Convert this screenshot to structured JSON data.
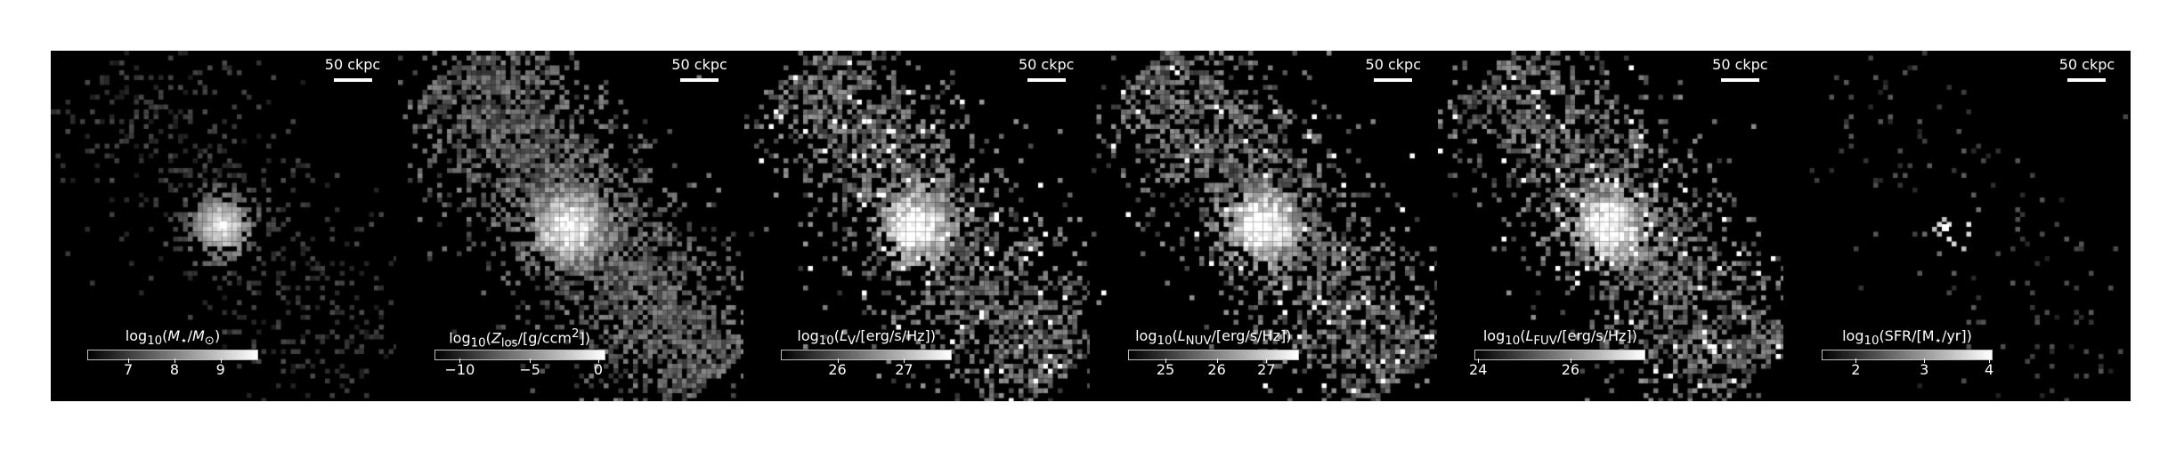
{
  "panels": [
    {
      "scale_label": "50 ckpc",
      "colorbar_label": "log<sub>10</sub>(<i>M</i><sub>⋆</sub>/<i>M</i><sub>⊙</sub>)",
      "ticks": [
        {
          "label": "7",
          "frac": 0.24
        },
        {
          "label": "8",
          "frac": 0.51
        },
        {
          "label": "9",
          "frac": 0.78
        }
      ],
      "style": "stellar"
    },
    {
      "scale_label": "50 ckpc",
      "colorbar_label": "log<sub>10</sub>(<i>Z</i><sub>los</sub>/[g/ccm<sup>2</sup>])",
      "ticks": [
        {
          "label": "−10",
          "frac": 0.15
        },
        {
          "label": "−5",
          "frac": 0.56
        },
        {
          "label": "0",
          "frac": 0.96
        }
      ],
      "style": "metal"
    },
    {
      "scale_label": "50 ckpc",
      "colorbar_label": "log<sub>10</sub>(<i>L</i><sub>V</sub>/[erg/s/Hz])",
      "ticks": [
        {
          "label": "26",
          "frac": 0.33
        },
        {
          "label": "27",
          "frac": 0.72
        }
      ],
      "style": "lum"
    },
    {
      "scale_label": "50 ckpc",
      "colorbar_label": "log<sub>10</sub>(<i>L</i><sub>NUV</sub>/[erg/s/Hz])",
      "ticks": [
        {
          "label": "25",
          "frac": 0.22
        },
        {
          "label": "26",
          "frac": 0.52
        },
        {
          "label": "27",
          "frac": 0.81
        }
      ],
      "style": "lum"
    },
    {
      "scale_label": "50 ckpc",
      "colorbar_label": "log<sub>10</sub>(<i>L</i><sub>FUV</sub>/[erg/s/Hz])",
      "ticks": [
        {
          "label": "24",
          "frac": 0.02
        },
        {
          "label": "26",
          "frac": 0.56
        }
      ],
      "style": "lum"
    },
    {
      "scale_label": "50 ckpc",
      "colorbar_label": "log<sub>10</sub>(SFR/[M<sub>⋆</sub>/yr])",
      "ticks": [
        {
          "label": "2",
          "frac": 0.2
        },
        {
          "label": "3",
          "frac": 0.6
        },
        {
          "label": "4",
          "frac": 0.98
        }
      ],
      "style": "sfr"
    }
  ]
}
